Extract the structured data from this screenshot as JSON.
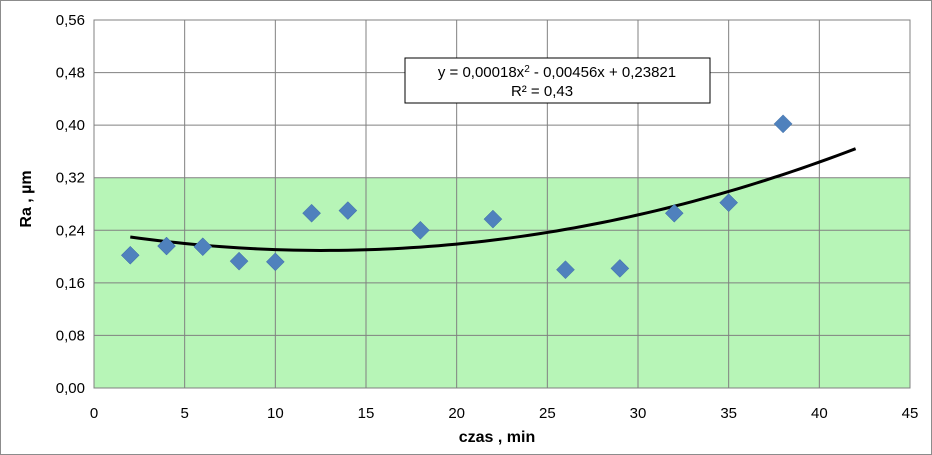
{
  "chart_data": {
    "type": "scatter",
    "title": "",
    "xlabel": "czas , min",
    "ylabel": "Ra , µm",
    "xlim": [
      0,
      45
    ],
    "ylim": [
      0,
      0.56
    ],
    "x_ticks": [
      0,
      5,
      10,
      15,
      20,
      25,
      30,
      35,
      40,
      45
    ],
    "x_tick_labels": [
      "0",
      "5",
      "10",
      "15",
      "20",
      "25",
      "30",
      "35",
      "40",
      "45"
    ],
    "y_ticks": [
      0,
      0.08,
      0.16,
      0.24,
      0.32,
      0.4,
      0.48,
      0.56
    ],
    "y_tick_labels": [
      "0,00",
      "0,08",
      "0,16",
      "0,24",
      "0,32",
      "0,40",
      "0,48",
      "0,56"
    ],
    "grid": true,
    "legend": "none",
    "highlight_band": {
      "y_from": 0,
      "y_to": 0.32,
      "color": "#b7f5b7"
    },
    "marker_color": "#4f81bd",
    "trendline_color": "#000000",
    "series": [
      {
        "x": [
          2,
          4,
          6,
          8,
          10,
          12,
          14,
          18,
          22,
          26,
          29,
          32,
          35,
          38
        ],
        "y": [
          0.202,
          0.216,
          0.215,
          0.193,
          0.192,
          0.266,
          0.27,
          0.24,
          0.257,
          0.18,
          0.182,
          0.266,
          0.282,
          0.402
        ]
      }
    ],
    "trendline": {
      "type": "polynomial",
      "coefficients": [
        0.00018,
        -0.00456,
        0.23821
      ],
      "x_range": [
        2,
        42
      ],
      "equation_prefix": "y = 0,00018x",
      "equation_exponent": "2",
      "equation_suffix": " - 0,00456x + 0,23821",
      "r_squared_label": "R² = 0,43"
    }
  }
}
